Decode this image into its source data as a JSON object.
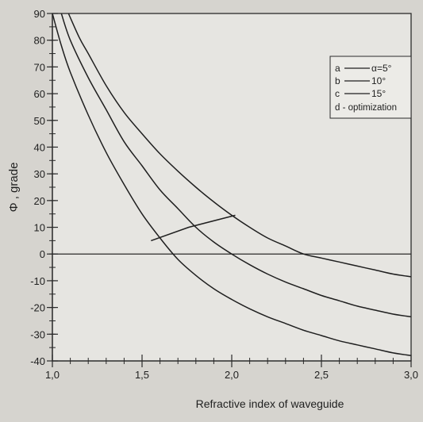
{
  "chart_data": {
    "type": "line",
    "xlabel": "Refractive index of waveguide",
    "ylabel": "Φ , grade",
    "xlim": [
      1.0,
      3.0
    ],
    "ylim": [
      -40,
      90
    ],
    "xticks": [
      {
        "v": 1.0,
        "label": "1,0"
      },
      {
        "v": 1.5,
        "label": "1,5"
      },
      {
        "v": 2.0,
        "label": "2,0"
      },
      {
        "v": 2.5,
        "label": "2,5"
      },
      {
        "v": 3.0,
        "label": "3,0"
      }
    ],
    "yticks": [
      {
        "v": 90,
        "label": "90"
      },
      {
        "v": 80,
        "label": "80"
      },
      {
        "v": 70,
        "label": "70"
      },
      {
        "v": 60,
        "label": "60"
      },
      {
        "v": 50,
        "label": "50"
      },
      {
        "v": 40,
        "label": "40"
      },
      {
        "v": 30,
        "label": "30"
      },
      {
        "v": 20,
        "label": "20"
      },
      {
        "v": 10,
        "label": "10"
      },
      {
        "v": 0,
        "label": "0"
      },
      {
        "v": -10,
        "label": "-10"
      },
      {
        "v": -20,
        "label": "-20"
      },
      {
        "v": -30,
        "label": "-30"
      },
      {
        "v": -40,
        "label": "-40"
      }
    ],
    "minor_x_step": 0.1,
    "minor_y_step": 5,
    "grid": false,
    "reference_line_y": 0,
    "legend": {
      "placement": "top-right",
      "entries": [
        {
          "key": "a",
          "text": "α=5°",
          "line": true
        },
        {
          "key": "b",
          "text": "10°",
          "line": true
        },
        {
          "key": "c",
          "text": "15°",
          "line": true
        },
        {
          "key": "d",
          "text": "d - optimization",
          "line": false
        }
      ]
    },
    "series": [
      {
        "key": "a",
        "x": [
          1.09,
          1.15,
          1.2,
          1.3,
          1.4,
          1.5,
          1.6,
          1.7,
          1.8,
          1.9,
          2.0,
          2.1,
          2.2,
          2.3,
          2.4,
          2.5,
          2.6,
          2.7,
          2.8,
          2.9,
          3.0
        ],
        "y": [
          90,
          81,
          75,
          63,
          53,
          45,
          37.5,
          31,
          25,
          19.5,
          14.5,
          10,
          6,
          3,
          0,
          -1.5,
          -3,
          -4.5,
          -6,
          -7.5,
          -8.5
        ]
      },
      {
        "key": "b",
        "x": [
          1.05,
          1.1,
          1.2,
          1.3,
          1.4,
          1.5,
          1.6,
          1.7,
          1.8,
          1.9,
          2.0,
          2.1,
          2.2,
          2.3,
          2.4,
          2.5,
          2.6,
          2.7,
          2.8,
          2.9,
          3.0
        ],
        "y": [
          90,
          80,
          66,
          54,
          42,
          33,
          24,
          17,
          10,
          4.5,
          0,
          -4,
          -7.5,
          -10.5,
          -13,
          -15.5,
          -17.5,
          -19.5,
          -21,
          -22.5,
          -23.5
        ]
      },
      {
        "key": "c",
        "x": [
          1.0,
          1.05,
          1.1,
          1.2,
          1.3,
          1.4,
          1.5,
          1.6,
          1.7,
          1.8,
          1.9,
          2.0,
          2.1,
          2.2,
          2.3,
          2.4,
          2.5,
          2.6,
          2.7,
          2.8,
          2.9,
          3.0
        ],
        "y": [
          90,
          78,
          68,
          52,
          38,
          26,
          15,
          6,
          -2,
          -8,
          -13,
          -17,
          -20.5,
          -23.5,
          -26,
          -28.5,
          -30.5,
          -32.5,
          -34,
          -35.5,
          -37,
          -38
        ]
      },
      {
        "key": "d",
        "x": [
          1.55,
          1.76,
          2.02
        ],
        "y": [
          5,
          10,
          14.5
        ]
      }
    ]
  }
}
